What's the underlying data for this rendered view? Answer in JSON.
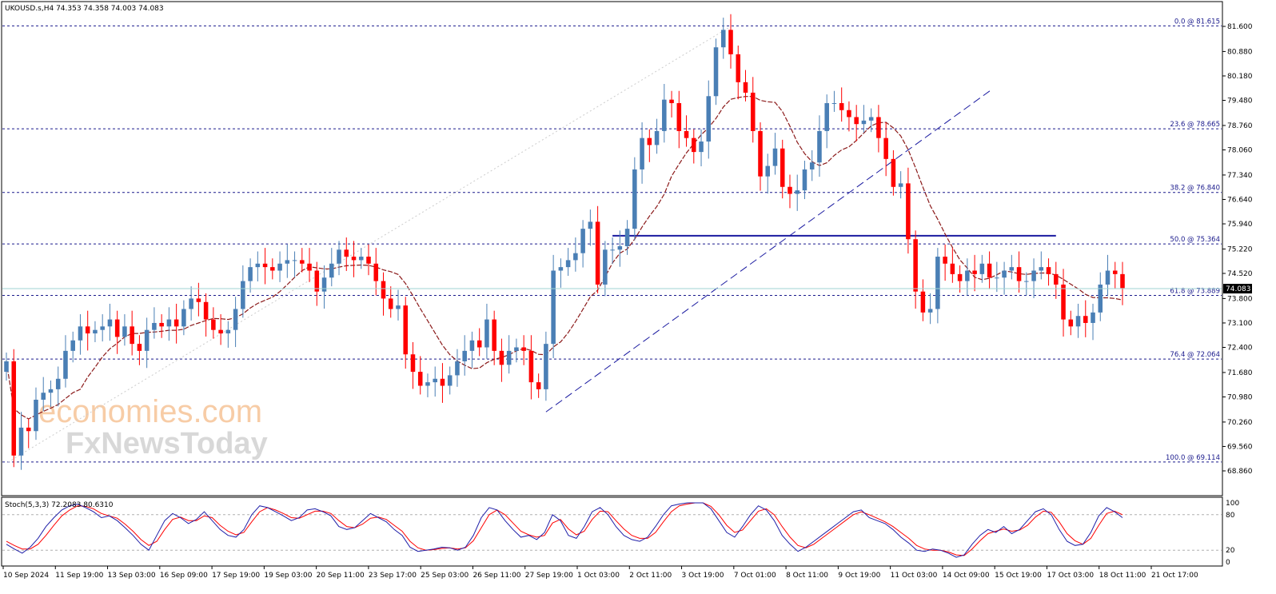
{
  "header": {
    "symbol_line": "UKOUSD.s,H4  74.353 74.358 74.003 74.083"
  },
  "stoch_header": "Stoch(5,3,3) 72.2083 80.6310",
  "watermark": {
    "line1": "economies.com",
    "line2": "FxNewsToday"
  },
  "price_tag": "74.083",
  "colors": {
    "bull": "#4a7fb5",
    "bear": "#ff0000",
    "ma": "#8b1a1a",
    "fib": "#1a1a8c",
    "trendline": "#1a1aa0",
    "stoch_main": "#1f1fa8",
    "stoch_signal": "#ff0000",
    "current_line": "#9fd3d3"
  },
  "chart_data": [
    {
      "type": "candlestick",
      "timeframe": "H4",
      "price_axis_ticks": [
        "81.600",
        "80.880",
        "80.180",
        "79.480",
        "78.760",
        "78.060",
        "77.340",
        "76.640",
        "75.940",
        "75.220",
        "74.520",
        "73.800",
        "73.100",
        "72.400",
        "71.680",
        "70.980",
        "70.260",
        "69.560",
        "68.860"
      ],
      "ylim": [
        68.86,
        81.6
      ],
      "time_axis_ticks": [
        "10 Sep 2024",
        "11 Sep 19:00",
        "13 Sep 03:00",
        "16 Sep 09:00",
        "17 Sep 19:00",
        "19 Sep 03:00",
        "20 Sep 11:00",
        "23 Sep 17:00",
        "25 Sep 03:00",
        "26 Sep 11:00",
        "27 Sep 19:00",
        "1 Oct 03:00",
        "2 Oct 11:00",
        "3 Oct 19:00",
        "7 Oct 01:00",
        "8 Oct 11:00",
        "9 Oct 19:00",
        "11 Oct 03:00",
        "14 Oct 09:00",
        "15 Oct 19:00",
        "17 Oct 03:00",
        "18 Oct 11:00",
        "21 Oct 17:00"
      ],
      "fibonacci": [
        {
          "label": "0.0 @ 81.615",
          "price": 81.615
        },
        {
          "label": "23.6 @ 78.665",
          "price": 78.665
        },
        {
          "label": "38.2 @ 76.840",
          "price": 76.84
        },
        {
          "label": "50.0 @ 75.364",
          "price": 75.364
        },
        {
          "label": "61.8 @ 73.889",
          "price": 73.889
        },
        {
          "label": "76.4 @ 72.064",
          "price": 72.064
        },
        {
          "label": "100.0 @ 69.114",
          "price": 69.114
        }
      ],
      "support_line_price": 75.6,
      "current_price": 74.083,
      "closes": [
        72.0,
        69.3,
        70.1,
        70.0,
        70.9,
        71.1,
        71.2,
        71.5,
        72.3,
        72.6,
        73.0,
        72.8,
        72.9,
        73.0,
        73.2,
        72.7,
        73.0,
        72.5,
        72.3,
        72.9,
        73.1,
        73.0,
        73.2,
        73.0,
        73.5,
        73.8,
        73.7,
        73.2,
        72.9,
        72.8,
        72.9,
        73.5,
        74.3,
        74.7,
        74.8,
        74.7,
        74.6,
        74.8,
        74.9,
        74.9,
        74.8,
        74.6,
        74.0,
        74.4,
        74.8,
        75.2,
        75.0,
        74.9,
        75.0,
        74.8,
        74.3,
        73.8,
        73.5,
        73.6,
        72.2,
        71.7,
        71.3,
        71.4,
        71.5,
        71.3,
        71.6,
        72.0,
        72.3,
        72.6,
        72.4,
        73.2,
        72.3,
        71.9,
        72.3,
        72.4,
        72.3,
        71.4,
        71.2,
        72.5,
        74.6,
        74.7,
        74.9,
        75.1,
        75.8,
        76.0,
        74.2,
        75.2,
        75.2,
        75.3,
        75.8,
        77.5,
        78.4,
        78.2,
        78.6,
        79.5,
        79.4,
        78.6,
        78.4,
        78.0,
        78.3,
        79.6,
        81.0,
        81.5,
        80.8,
        80.0,
        79.7,
        78.6,
        77.3,
        77.6,
        78.1,
        77.0,
        76.8,
        76.9,
        77.5,
        77.7,
        78.6,
        79.4,
        79.4,
        79.2,
        79.0,
        78.8,
        78.9,
        79.0,
        78.4,
        77.8,
        77.0,
        77.1,
        75.5,
        74.0,
        73.4,
        73.5,
        75.0,
        74.8,
        74.5,
        74.3,
        74.6,
        74.5,
        74.8,
        74.4,
        74.4,
        74.6,
        74.7,
        74.3,
        74.3,
        74.6,
        74.7,
        74.5,
        74.2,
        73.2,
        73.0,
        73.3,
        73.1,
        73.4,
        74.2,
        74.6,
        74.5,
        74.1
      ],
      "ma_period_note": "",
      "stochastic": {
        "levels": [
          100,
          80,
          20,
          0
        ],
        "main": [
          30,
          22,
          15,
          25,
          40,
          60,
          75,
          88,
          95,
          98,
          92,
          85,
          75,
          78,
          70,
          58,
          45,
          30,
          20,
          45,
          70,
          82,
          75,
          65,
          72,
          85,
          70,
          55,
          45,
          42,
          55,
          80,
          95,
          92,
          85,
          78,
          70,
          75,
          88,
          90,
          85,
          78,
          60,
          55,
          58,
          70,
          82,
          75,
          68,
          55,
          45,
          25,
          18,
          20,
          22,
          25,
          24,
          20,
          25,
          45,
          75,
          92,
          88,
          70,
          55,
          42,
          45,
          38,
          50,
          80,
          70,
          45,
          40,
          60,
          85,
          92,
          80,
          60,
          45,
          38,
          35,
          42,
          60,
          80,
          95,
          98,
          100,
          100,
          100,
          90,
          70,
          50,
          42,
          60,
          80,
          95,
          88,
          70,
          45,
          30,
          18,
          25,
          35,
          45,
          55,
          65,
          75,
          85,
          88,
          75,
          70,
          65,
          55,
          42,
          32,
          20,
          18,
          22,
          20,
          15,
          8,
          12,
          30,
          45,
          55,
          50,
          60,
          48,
          55,
          70,
          85,
          90,
          80,
          55,
          35,
          28,
          30,
          50,
          78,
          92,
          85,
          75
        ],
        "signal": [
          35,
          28,
          22,
          22,
          30,
          45,
          62,
          78,
          88,
          95,
          94,
          90,
          82,
          78,
          74,
          64,
          52,
          38,
          28,
          35,
          55,
          72,
          76,
          70,
          70,
          78,
          75,
          62,
          52,
          46,
          50,
          68,
          85,
          92,
          88,
          82,
          75,
          74,
          80,
          86,
          86,
          82,
          70,
          60,
          58,
          64,
          74,
          76,
          72,
          62,
          52,
          35,
          24,
          20,
          21,
          23,
          24,
          22,
          24,
          36,
          58,
          80,
          88,
          80,
          66,
          52,
          46,
          42,
          45,
          66,
          72,
          56,
          46,
          52,
          72,
          86,
          85,
          70,
          56,
          45,
          40,
          40,
          50,
          68,
          85,
          95,
          98,
          100,
          100,
          94,
          80,
          62,
          50,
          54,
          70,
          86,
          90,
          80,
          60,
          42,
          28,
          24,
          30,
          40,
          50,
          60,
          70,
          80,
          85,
          80,
          74,
          68,
          60,
          50,
          40,
          28,
          22,
          20,
          20,
          17,
          12,
          11,
          22,
          36,
          48,
          52,
          56,
          52,
          54,
          62,
          76,
          86,
          84,
          68,
          48,
          36,
          30,
          40,
          62,
          82,
          86,
          80
        ]
      }
    }
  ]
}
